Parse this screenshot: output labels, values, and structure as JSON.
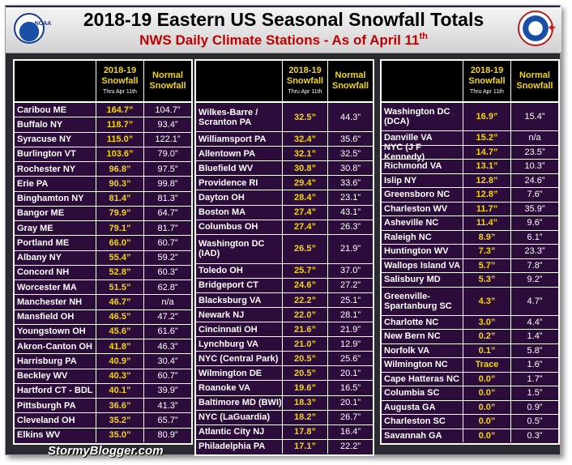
{
  "title": "2018-19 Eastern US Seasonal Snowfall Totals",
  "subtitle": "NWS Daily Climate Stations - As of April 11",
  "subtitle_sup": "th",
  "logos": {
    "left": "NOAA",
    "right": "NATIONAL WEATHER SERVICE"
  },
  "columns": {
    "cur_line1": "2018-19",
    "cur_line2": "Snowfall",
    "cur_line3": "Thru Apr 11th",
    "norm_line1": "Normal",
    "norm_line2": "Snowfall"
  },
  "footer": "StormyBlogger.com",
  "panels": [
    {
      "rows": [
        {
          "city": "Caribou ME",
          "cur": "164.7”",
          "norm": "104.7”"
        },
        {
          "city": "Buffalo NY",
          "cur": "118.7”",
          "norm": "93.4”"
        },
        {
          "city": "Syracuse NY",
          "cur": "115.0”",
          "norm": "122.1”"
        },
        {
          "city": "Burlington VT",
          "cur": "103.6”",
          "norm": "79.0”"
        },
        {
          "city": "Rochester NY",
          "cur": "96.8”",
          "norm": "97.5”"
        },
        {
          "city": "Erie PA",
          "cur": "90.3”",
          "norm": "99.8”"
        },
        {
          "city": "Binghamton NY",
          "cur": "81.4”",
          "norm": "81.3”"
        },
        {
          "city": "Bangor ME",
          "cur": "79.9”",
          "norm": "64.7”"
        },
        {
          "city": "Gray ME",
          "cur": "79.1”",
          "norm": "81.7”"
        },
        {
          "city": "Portland ME",
          "cur": "66.0”",
          "norm": "60.7”"
        },
        {
          "city": "Albany NY",
          "cur": "55.4”",
          "norm": "59.2”"
        },
        {
          "city": "Concord NH",
          "cur": "52.8”",
          "norm": "60.3”"
        },
        {
          "city": "Worcester MA",
          "cur": "51.5”",
          "norm": "62.8”"
        },
        {
          "city": "Manchester NH",
          "cur": "46.7”",
          "norm": "n/a"
        },
        {
          "city": "Mansfield OH",
          "cur": "46.5”",
          "norm": "47.2”"
        },
        {
          "city": "Youngstown OH",
          "cur": "45.6”",
          "norm": "61.6”"
        },
        {
          "city": "Akron-Canton OH",
          "cur": "41.8”",
          "norm": "46.3”"
        },
        {
          "city": "Harrisburg PA",
          "cur": "40.9”",
          "norm": "30.4”"
        },
        {
          "city": "Beckley WV",
          "cur": "40.3”",
          "norm": "60.7”"
        },
        {
          "city": "Hartford CT - BDL",
          "cur": "40.1”",
          "norm": "39.9”"
        },
        {
          "city": "Pittsburgh PA",
          "cur": "36.6”",
          "norm": "41.3”"
        },
        {
          "city": "Cleveland OH",
          "cur": "35.2”",
          "norm": "65.7”"
        },
        {
          "city": "Elkins WV",
          "cur": "35.0”",
          "norm": "80.9”"
        }
      ]
    },
    {
      "rows": [
        {
          "city": "Wilkes-Barre / Scranton PA",
          "cur": "32.5”",
          "norm": "44.3”",
          "tall": true
        },
        {
          "city": "Williamsport PA",
          "cur": "32.4”",
          "norm": "35.6”"
        },
        {
          "city": "Allentown PA",
          "cur": "32.1”",
          "norm": "32.5”"
        },
        {
          "city": "Bluefield WV",
          "cur": "30.8”",
          "norm": "30.8”"
        },
        {
          "city": "Providence RI",
          "cur": "29.4”",
          "norm": "33.6”"
        },
        {
          "city": "Dayton OH",
          "cur": "28.4”",
          "norm": "23.1”"
        },
        {
          "city": "Boston MA",
          "cur": "27.4”",
          "norm": "43.1”"
        },
        {
          "city": "Columbus OH",
          "cur": "27.4”",
          "norm": "26.3”"
        },
        {
          "city": "Washington DC (IAD)",
          "cur": "26.5”",
          "norm": "21.9”",
          "tall": true
        },
        {
          "city": "Toledo OH",
          "cur": "25.7”",
          "norm": "37.0”"
        },
        {
          "city": "Bridgeport CT",
          "cur": "24.6”",
          "norm": "27.2”"
        },
        {
          "city": "Blacksburg VA",
          "cur": "22.2”",
          "norm": "25.1”"
        },
        {
          "city": "Newark NJ",
          "cur": "22.0”",
          "norm": "28.1”"
        },
        {
          "city": "Cincinnati OH",
          "cur": "21.6”",
          "norm": "21.9”"
        },
        {
          "city": "Lynchburg VA",
          "cur": "21.0”",
          "norm": "12.9”"
        },
        {
          "city": "NYC (Central Park)",
          "cur": "20.5”",
          "norm": "25.6”"
        },
        {
          "city": "Wilmington DE",
          "cur": "20.5”",
          "norm": "20.1”"
        },
        {
          "city": "Roanoke VA",
          "cur": "19.6”",
          "norm": "16.5”"
        },
        {
          "city": "Baltimore MD (BWI)",
          "cur": "18.3”",
          "norm": "20.1”"
        },
        {
          "city": "NYC (LaGuardia)",
          "cur": "18.2”",
          "norm": "26.7”"
        },
        {
          "city": "Atlantic City NJ",
          "cur": "17.8”",
          "norm": "16.4”"
        },
        {
          "city": "Philadelphia PA",
          "cur": "17.1”",
          "norm": "22.2”"
        }
      ]
    },
    {
      "rows": [
        {
          "city": "Washington DC (DCA)",
          "cur": "16.9”",
          "norm": "15.4”",
          "tall": true
        },
        {
          "city": "Danville VA",
          "cur": "15.2”",
          "norm": "n/a"
        },
        {
          "city": "NYC (J F Kennedy)",
          "cur": "14.7”",
          "norm": "23.5”"
        },
        {
          "city": "Richmond VA",
          "cur": "13.1”",
          "norm": "10.3”"
        },
        {
          "city": "Islip NY",
          "cur": "12.8”",
          "norm": "24.6”"
        },
        {
          "city": "Greensboro NC",
          "cur": "12.8”",
          "norm": "7.6”"
        },
        {
          "city": "Charleston WV",
          "cur": "11.7”",
          "norm": "35.9”"
        },
        {
          "city": "Asheville NC",
          "cur": "11.4”",
          "norm": "9.6”"
        },
        {
          "city": "Raleigh NC",
          "cur": "8.9”",
          "norm": "6.1”"
        },
        {
          "city": "Huntington WV",
          "cur": "7.3”",
          "norm": "23.3”"
        },
        {
          "city": "Wallops Island VA",
          "cur": "5.7”",
          "norm": "7.8”"
        },
        {
          "city": "Salisbury MD",
          "cur": "5.3”",
          "norm": "9.2”"
        },
        {
          "city": "Greenville-Spartanburg SC",
          "cur": "4.3”",
          "norm": "4.7”",
          "tall": true
        },
        {
          "city": "Charlotte NC",
          "cur": "3.0”",
          "norm": "4.4”"
        },
        {
          "city": "New Bern NC",
          "cur": "0.2”",
          "norm": "1.4”"
        },
        {
          "city": "Norfolk VA",
          "cur": "0.1”",
          "norm": "5.8”"
        },
        {
          "city": "Wilmington NC",
          "cur": "Trace",
          "norm": "1.6”"
        },
        {
          "city": "Cape Hatteras NC",
          "cur": "0.0”",
          "norm": "1.7”"
        },
        {
          "city": "Columbia SC",
          "cur": "0.0”",
          "norm": "1.5”"
        },
        {
          "city": "Augusta GA",
          "cur": "0.0”",
          "norm": "0.9”"
        },
        {
          "city": "Charleston SC",
          "cur": "0.0”",
          "norm": "0.5”"
        },
        {
          "city": "Savannah GA",
          "cur": "0.0”",
          "norm": "0.3”"
        }
      ]
    }
  ]
}
